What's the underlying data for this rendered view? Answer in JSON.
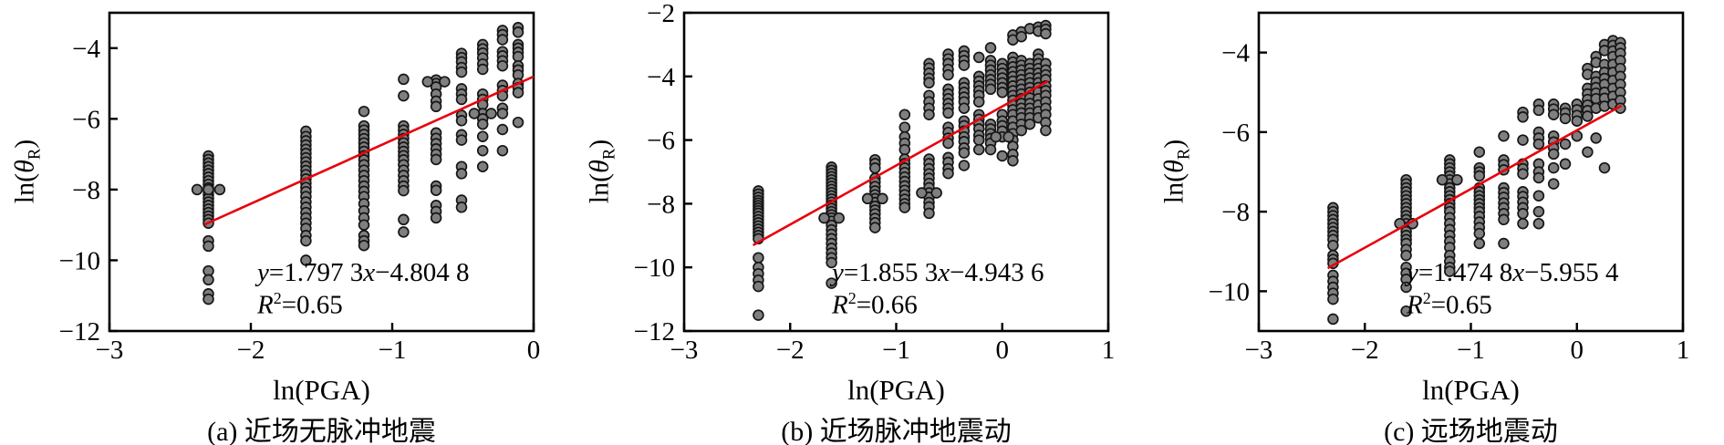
{
  "figure": {
    "background": "#ffffff",
    "marker": {
      "fill": "#7f7f7f",
      "stroke": "#161616",
      "radius": 5.4
    },
    "line_color": "#e8000b",
    "axis_color": "#000000"
  },
  "chart_data": [
    {
      "type": "scatter",
      "panel_id": "a",
      "caption": "(a) 近场无脉冲地震",
      "xlabel": "ln(PGA)",
      "ylabel_parts": {
        "prefix": "ln(",
        "theta": "θ",
        "sub": "R",
        "suffix": ")"
      },
      "equation": {
        "lhs": "y",
        "mid": "=1.797 3",
        "xvar": "x",
        "tail": "−4.804 8"
      },
      "r_squared": {
        "base": "R",
        "sup": "2",
        "rest": "=0.65"
      },
      "xlim": [
        -3,
        0
      ],
      "ylim": [
        -12,
        -3
      ],
      "xticks": [
        -3,
        -2,
        -1,
        0
      ],
      "yticks": [
        -4,
        -6,
        -8,
        -10,
        -12
      ],
      "fit": {
        "slope": 1.7973,
        "intercept": -4.8048,
        "x_start": -2.33,
        "x_end": 0.0
      },
      "columns": [
        {
          "x": -2.3,
          "ys": [
            -7.05,
            -7.15,
            -7.25,
            -7.35,
            -7.45,
            -7.55,
            -7.65,
            -7.75,
            -7.85,
            -7.95,
            -8.05,
            -8.15,
            -8.25,
            -8.35,
            -8.45,
            -8.55,
            -8.65,
            -8.75,
            -8.85,
            -8.95,
            -9.45,
            -9.6,
            -10.3,
            -10.55,
            -10.95,
            -11.1
          ]
        },
        {
          "x": -1.61,
          "ys": [
            -6.35,
            -6.5,
            -6.62,
            -6.74,
            -6.86,
            -6.98,
            -7.1,
            -7.22,
            -7.34,
            -7.46,
            -7.58,
            -7.7,
            -7.82,
            -7.94,
            -8.06,
            -8.2,
            -8.35,
            -8.5,
            -8.65,
            -8.8,
            -8.95,
            -9.1,
            -9.3,
            -9.45,
            -10.0
          ]
        },
        {
          "x": -1.2,
          "ys": [
            -5.79,
            -6.2,
            -6.32,
            -6.44,
            -6.56,
            -6.68,
            -6.8,
            -6.92,
            -7.04,
            -7.16,
            -7.3,
            -7.45,
            -7.6,
            -7.75,
            -7.9,
            -8.05,
            -8.2,
            -8.4,
            -8.6,
            -8.8,
            -9.0,
            -9.3,
            -9.45,
            -9.58
          ]
        },
        {
          "x": -0.92,
          "ys": [
            -4.88,
            -5.35,
            -6.2,
            -6.32,
            -6.44,
            -6.56,
            -6.68,
            -6.8,
            -6.92,
            -7.04,
            -7.16,
            -7.3,
            -7.45,
            -7.6,
            -7.75,
            -7.9,
            -8.03,
            -8.85,
            -9.2
          ]
        },
        {
          "x": -0.69,
          "ys": [
            -4.9,
            -5.0,
            -5.1,
            -5.3,
            -5.5,
            -5.65,
            -6.4,
            -6.55,
            -6.7,
            -6.85,
            -7.0,
            -7.15,
            -7.9,
            -8.02,
            -8.45,
            -8.62,
            -8.8
          ]
        },
        {
          "x": -0.51,
          "ys": [
            -4.15,
            -4.27,
            -4.39,
            -4.55,
            -4.68,
            -5.15,
            -5.3,
            -5.45,
            -5.9,
            -6.05,
            -6.45,
            -6.6,
            -7.35,
            -7.55,
            -8.3,
            -8.5
          ]
        },
        {
          "x": -0.36,
          "ys": [
            -3.9,
            -4.02,
            -4.14,
            -4.28,
            -4.45,
            -4.6,
            -5.3,
            -5.45,
            -5.6,
            -5.85,
            -6.0,
            -6.15,
            -6.5,
            -6.9,
            -7.35
          ]
        },
        {
          "x": -0.22,
          "ys": [
            -3.5,
            -3.62,
            -3.76,
            -4.1,
            -4.22,
            -4.36,
            -4.5,
            -5.05,
            -5.2,
            -5.35,
            -5.7,
            -5.85,
            -6.3,
            -6.9
          ]
        },
        {
          "x": -0.11,
          "ys": [
            -3.42,
            -3.55,
            -3.9,
            -4.0,
            -4.12,
            -4.24,
            -4.5,
            -4.62,
            -4.76,
            -5.0,
            -5.12,
            -5.26,
            -6.1
          ]
        }
      ],
      "extra_points": [
        [
          -2.38,
          -8.0
        ],
        [
          -2.3,
          -8.0
        ],
        [
          -2.22,
          -8.0
        ],
        [
          -0.75,
          -4.95
        ],
        [
          -0.63,
          -4.95
        ],
        [
          -0.42,
          -5.85
        ],
        [
          -0.3,
          -5.85
        ]
      ]
    },
    {
      "type": "scatter",
      "panel_id": "b",
      "caption": "(b) 近场脉冲地震动",
      "xlabel": "ln(PGA)",
      "ylabel_parts": {
        "prefix": "ln(",
        "theta": "θ",
        "sub": "R",
        "suffix": ")"
      },
      "equation": {
        "lhs": "y",
        "mid": "=1.855 3",
        "xvar": "x",
        "tail": "−4.943 6"
      },
      "r_squared": {
        "base": "R",
        "sup": "2",
        "rest": "=0.66"
      },
      "xlim": [
        -3,
        1
      ],
      "ylim": [
        -12,
        -2
      ],
      "xticks": [
        -3,
        -2,
        -1,
        0,
        1
      ],
      "yticks": [
        -2,
        -4,
        -6,
        -8,
        -10,
        -12
      ],
      "fit": {
        "slope": 1.8553,
        "intercept": -4.9436,
        "x_start": -2.35,
        "x_end": 0.43
      },
      "columns": [
        {
          "x": -2.3,
          "ys": [
            -7.6,
            -7.7,
            -7.8,
            -7.9,
            -7.98,
            -8.06,
            -8.14,
            -8.22,
            -8.3,
            -8.4,
            -8.5,
            -8.6,
            -8.7,
            -8.8,
            -8.9,
            -9.0,
            -9.1,
            -9.7,
            -10.0,
            -10.2,
            -10.4,
            -10.6,
            -11.5
          ]
        },
        {
          "x": -1.61,
          "ys": [
            -6.85,
            -6.95,
            -7.05,
            -7.15,
            -7.25,
            -7.35,
            -7.45,
            -7.55,
            -7.65,
            -7.75,
            -7.85,
            -7.95,
            -8.05,
            -8.15,
            -8.25,
            -8.35,
            -8.45,
            -8.55,
            -8.68,
            -8.82,
            -8.96,
            -9.1,
            -9.25,
            -9.4,
            -9.55,
            -9.7,
            -9.85,
            -10.5
          ]
        },
        {
          "x": -1.2,
          "ys": [
            -6.62,
            -6.74,
            -6.88,
            -7.2,
            -7.32,
            -7.46,
            -7.6,
            -7.72,
            -7.84,
            -7.96,
            -8.08,
            -8.2,
            -8.32,
            -8.46,
            -8.6,
            -8.75
          ]
        },
        {
          "x": -0.92,
          "ys": [
            -5.2,
            -5.6,
            -5.9,
            -6.1,
            -6.3,
            -6.6,
            -6.74,
            -6.88,
            -7.02,
            -7.16,
            -7.3,
            -7.44,
            -7.58,
            -7.72,
            -7.86,
            -8.0,
            -8.12
          ]
        },
        {
          "x": -0.69,
          "ys": [
            -3.6,
            -3.74,
            -3.9,
            -4.06,
            -4.2,
            -4.6,
            -4.8,
            -5.0,
            -5.2,
            -6.6,
            -6.74,
            -6.9,
            -7.06,
            -7.2,
            -7.36,
            -7.5,
            -7.66,
            -7.8,
            -7.96,
            -8.1,
            -8.3
          ]
        },
        {
          "x": -0.51,
          "ys": [
            -3.3,
            -3.45,
            -3.6,
            -3.78,
            -3.95,
            -4.4,
            -4.55,
            -4.7,
            -4.85,
            -5.0,
            -5.15,
            -5.6,
            -5.76,
            -5.94,
            -6.1,
            -6.55,
            -6.7,
            -6.9,
            -7.05
          ]
        },
        {
          "x": -0.36,
          "ys": [
            -3.2,
            -3.35,
            -3.5,
            -3.65,
            -4.2,
            -4.35,
            -4.5,
            -4.65,
            -4.8,
            -5.0,
            -5.4,
            -5.55,
            -5.72,
            -5.9,
            -6.05,
            -6.25,
            -6.4,
            -6.8
          ]
        },
        {
          "x": -0.22,
          "ys": [
            -3.4,
            -4.0,
            -4.15,
            -4.3,
            -4.45,
            -4.6,
            -4.8,
            -5.2,
            -5.35,
            -5.5,
            -5.65,
            -5.85,
            -6.0,
            -6.3
          ]
        },
        {
          "x": -0.11,
          "ys": [
            -3.1,
            -3.5,
            -3.65,
            -3.8,
            -3.95,
            -4.1,
            -4.25,
            -4.4,
            -5.5,
            -5.65,
            -5.8,
            -5.95,
            -6.1,
            -6.3
          ]
        },
        {
          "x": 0.0,
          "ys": [
            -3.6,
            -3.75,
            -3.9,
            -4.05,
            -4.2,
            -4.35,
            -4.5,
            -5.2,
            -5.4,
            -5.55,
            -5.72,
            -5.9,
            -6.5
          ]
        },
        {
          "x": 0.1,
          "ys": [
            -2.7,
            -2.85,
            -3.4,
            -3.55,
            -3.7,
            -3.85,
            -4.0,
            -4.15,
            -4.3,
            -4.45,
            -4.6,
            -4.75,
            -4.9,
            -5.05,
            -5.2,
            -5.4,
            -5.6,
            -5.8,
            -6.0,
            -6.2,
            -6.45,
            -6.65
          ]
        },
        {
          "x": 0.18,
          "ys": [
            -2.6,
            -2.75,
            -3.5,
            -3.65,
            -3.8,
            -3.95,
            -4.1,
            -4.25,
            -4.4,
            -4.55,
            -4.7,
            -4.85,
            -5.0,
            -5.15,
            -5.3,
            -5.5,
            -5.7
          ]
        },
        {
          "x": 0.26,
          "ys": [
            -2.5,
            -3.6,
            -3.75,
            -3.9,
            -4.05,
            -4.2,
            -4.35,
            -4.5,
            -4.68,
            -4.85,
            -5.0,
            -5.15,
            -5.3,
            -5.5
          ]
        },
        {
          "x": 0.34,
          "ys": [
            -2.45,
            -2.58,
            -3.3,
            -3.45,
            -3.6,
            -3.75,
            -3.9,
            -4.05,
            -4.2,
            -4.35,
            -4.5,
            -4.7,
            -4.9,
            -5.1,
            -5.3
          ]
        },
        {
          "x": 0.41,
          "ys": [
            -2.4,
            -2.52,
            -2.66,
            -3.6,
            -3.8,
            -3.95,
            -4.1,
            -4.3,
            -4.45,
            -4.6,
            -4.8,
            -5.0,
            -5.2,
            -5.45,
            -5.7
          ]
        }
      ],
      "extra_points": [
        [
          -1.68,
          -8.45
        ],
        [
          -1.54,
          -8.45
        ],
        [
          -1.27,
          -7.84
        ],
        [
          -1.13,
          -7.84
        ],
        [
          -0.76,
          -7.66
        ],
        [
          -0.62,
          -7.66
        ],
        [
          -0.06,
          -5.9
        ],
        [
          0.06,
          -5.9
        ]
      ]
    },
    {
      "type": "scatter",
      "panel_id": "c",
      "caption": "(c) 远场地震动",
      "xlabel": "ln(PGA)",
      "ylabel_parts": {
        "prefix": "ln(",
        "theta": "θ",
        "sub": "R",
        "suffix": ")"
      },
      "equation": {
        "lhs": "y",
        "mid": "=1.474 8",
        "xvar": "x",
        "tail": "−5.955 4"
      },
      "r_squared": {
        "base": "R",
        "sup": "2",
        "rest": "=0.65"
      },
      "xlim": [
        -3,
        1
      ],
      "ylim": [
        -11,
        -3
      ],
      "xticks": [
        -3,
        -2,
        -1,
        0,
        1
      ],
      "yticks": [
        -4,
        -6,
        -8,
        -10
      ],
      "fit": {
        "slope": 1.4748,
        "intercept": -5.9554,
        "x_start": -2.35,
        "x_end": 0.42
      },
      "columns": [
        {
          "x": -2.3,
          "ys": [
            -7.9,
            -8.0,
            -8.1,
            -8.2,
            -8.3,
            -8.4,
            -8.5,
            -8.6,
            -8.7,
            -8.85,
            -9.1,
            -9.2,
            -9.3,
            -9.6,
            -9.75,
            -9.9,
            -10.05,
            -10.2,
            -10.7
          ]
        },
        {
          "x": -1.61,
          "ys": [
            -7.2,
            -7.3,
            -7.4,
            -7.5,
            -7.6,
            -7.7,
            -7.8,
            -7.9,
            -8.0,
            -8.1,
            -8.2,
            -8.3,
            -8.4,
            -8.5,
            -8.6,
            -8.7,
            -8.8,
            -8.95,
            -9.1,
            -9.4,
            -9.55,
            -9.7,
            -9.9,
            -10.5
          ]
        },
        {
          "x": -1.2,
          "ys": [
            -6.7,
            -6.8,
            -6.9,
            -7.0,
            -7.1,
            -7.2,
            -7.3,
            -7.4,
            -7.5,
            -7.6,
            -7.7,
            -7.8,
            -7.9,
            -8.0,
            -8.15,
            -8.3,
            -8.45,
            -8.6,
            -8.75,
            -8.9,
            -9.1,
            -9.25,
            -9.4,
            -9.5
          ]
        },
        {
          "x": -0.92,
          "ys": [
            -6.5,
            -6.9,
            -7.0,
            -7.1,
            -7.4,
            -7.5,
            -7.6,
            -7.7,
            -7.8,
            -7.9,
            -8.0,
            -8.12,
            -8.26,
            -8.4,
            -8.55,
            -8.8
          ]
        },
        {
          "x": -0.69,
          "ys": [
            -6.1,
            -6.7,
            -6.82,
            -6.95,
            -7.4,
            -7.52,
            -7.64,
            -7.78,
            -7.9,
            -8.05,
            -8.2,
            -8.8
          ]
        },
        {
          "x": -0.51,
          "ys": [
            -5.5,
            -5.62,
            -6.2,
            -6.8,
            -6.92,
            -7.05,
            -7.5,
            -7.62,
            -7.76,
            -7.9,
            -8.05,
            -8.3
          ]
        },
        {
          "x": -0.36,
          "ys": [
            -5.3,
            -5.45,
            -6.0,
            -6.15,
            -6.3,
            -6.8,
            -7.0,
            -7.15,
            -7.6,
            -8.0,
            -8.3
          ]
        },
        {
          "x": -0.22,
          "ys": [
            -5.3,
            -5.42,
            -5.56,
            -6.1,
            -6.25,
            -6.4,
            -6.55,
            -6.9,
            -7.3
          ]
        },
        {
          "x": -0.11,
          "ys": [
            -5.4,
            -5.52,
            -5.66,
            -6.3,
            -6.8
          ]
        },
        {
          "x": 0.0,
          "ys": [
            -5.3,
            -5.44,
            -5.58,
            -5.72,
            -6.1
          ]
        },
        {
          "x": 0.1,
          "ys": [
            -4.4,
            -4.55,
            -4.9,
            -5.04,
            -5.18,
            -5.32,
            -5.46,
            -5.6,
            -6.5
          ]
        },
        {
          "x": 0.18,
          "ys": [
            -4.1,
            -4.25,
            -4.6,
            -4.74,
            -4.88,
            -5.02,
            -5.16,
            -5.4,
            -6.15
          ]
        },
        {
          "x": 0.26,
          "ys": [
            -3.8,
            -3.95,
            -4.3,
            -4.5,
            -4.65,
            -4.8,
            -5.0,
            -5.15,
            -5.35,
            -6.9
          ]
        },
        {
          "x": 0.34,
          "ys": [
            -3.7,
            -3.82,
            -3.96,
            -4.1,
            -4.3,
            -4.5,
            -4.7,
            -4.9,
            -5.1,
            -5.3
          ]
        },
        {
          "x": 0.41,
          "ys": [
            -3.75,
            -3.88,
            -4.02,
            -4.2,
            -4.4,
            -4.6,
            -4.8,
            -5.0,
            -5.2,
            -5.4
          ]
        }
      ],
      "extra_points": [
        [
          -1.67,
          -8.3
        ],
        [
          -1.55,
          -8.3
        ],
        [
          -1.27,
          -7.2
        ],
        [
          -1.13,
          -7.2
        ]
      ]
    }
  ]
}
